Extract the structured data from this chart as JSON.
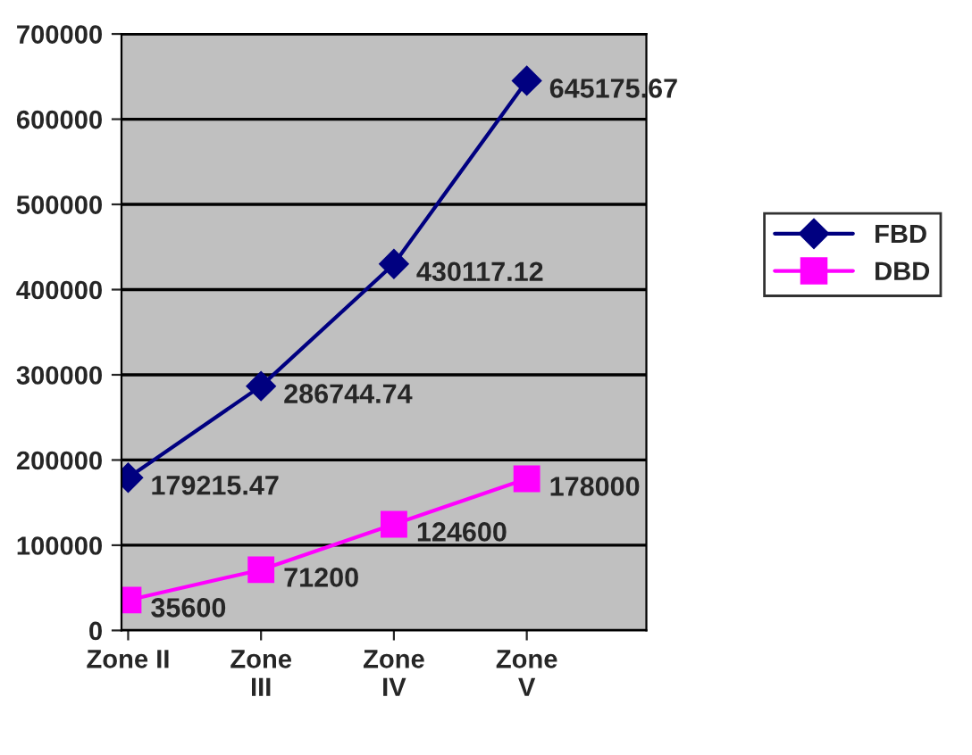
{
  "chart_data": {
    "type": "line",
    "categories": [
      "Zone II",
      "Zone III",
      "Zone IV",
      "Zone V"
    ],
    "series": [
      {
        "name": "FBD",
        "color": "#000080",
        "marker": "diamond",
        "values": [
          179215.47,
          286744.74,
          430117.12,
          645175.67
        ]
      },
      {
        "name": "DBD",
        "color": "#ff00ff",
        "marker": "square",
        "values": [
          35600,
          71200,
          124600,
          178000
        ]
      }
    ],
    "ylim": [
      0,
      700000
    ],
    "yticks": [
      0,
      100000,
      200000,
      300000,
      400000,
      500000,
      600000,
      700000
    ],
    "grid": "y",
    "legend": "right",
    "data_labels": true
  }
}
